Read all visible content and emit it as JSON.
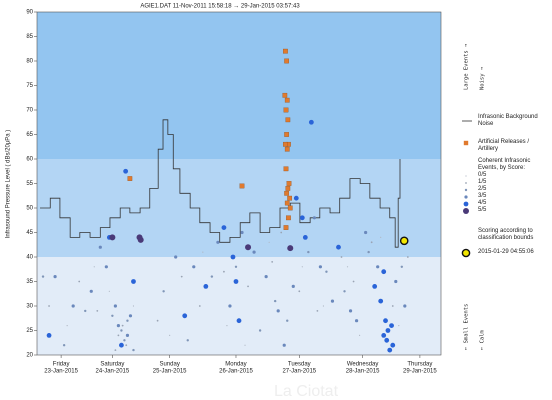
{
  "chart_data": {
    "type": "scatter",
    "title": "AGIE1.DAT  11-Nov-2011 15:58:18  →  29-Jan-2015 03:57:43",
    "y_label": "Infrasound Pressure Level  ( dBs/20μPa )",
    "watermark": "La Ciotat",
    "ylim": [
      20,
      90
    ],
    "yticks": [
      20,
      25,
      30,
      35,
      40,
      45,
      50,
      55,
      60,
      65,
      70,
      75,
      80,
      85,
      90
    ],
    "xlim": [
      0,
      6.7
    ],
    "xticks": [
      {
        "value": 0.4,
        "label": "Friday",
        "date": "23-Jan-2015"
      },
      {
        "value": 1.25,
        "label": "Saturday",
        "date": "24-Jan-2015"
      },
      {
        "value": 2.2,
        "label": "Sunday",
        "date": "25-Jan-2015"
      },
      {
        "value": 3.3,
        "label": "Monday",
        "date": "26-Jan-2015"
      },
      {
        "value": 4.35,
        "label": "Tuesday",
        "date": "27-Jan-2015"
      },
      {
        "value": 5.4,
        "label": "Wednesday",
        "date": "28-Jan-2015"
      },
      {
        "value": 6.35,
        "label": "Thursday",
        "date": "29-Jan-2015"
      }
    ],
    "bands": [
      {
        "from": 20,
        "to": 40,
        "color": "#e2ecf8"
      },
      {
        "from": 40,
        "to": 60,
        "color": "#b3d5f4"
      },
      {
        "from": 60,
        "to": 90,
        "color": "#93c5f0"
      }
    ],
    "side_labels": {
      "top": [
        "Large Events →",
        "Noisy →"
      ],
      "bottom": [
        "← Small Events",
        "← Calm"
      ]
    },
    "legend_headers": [
      "Coherent Infrasonic Events, by Score:",
      "Scoring according to classification bounds"
    ],
    "series": [
      {
        "name": "Infrasonic Background Noise",
        "kind": "step",
        "color": "#333333",
        "x": [
          0.05,
          0.22,
          0.38,
          0.55,
          0.71,
          0.88,
          1.05,
          1.21,
          1.38,
          1.54,
          1.71,
          1.87,
          2.01,
          2.09,
          2.17,
          2.26,
          2.37,
          2.54,
          2.7,
          2.87,
          3.03,
          3.2,
          3.37,
          3.53,
          3.7,
          3.86,
          4.03,
          4.2,
          4.36,
          4.53,
          4.69,
          4.86,
          5.02,
          5.19,
          5.36,
          5.52,
          5.69,
          5.85,
          5.94,
          5.99,
          6.02
        ],
        "values": [
          50,
          52,
          48,
          44,
          45,
          44,
          46,
          48,
          50,
          49,
          50,
          54,
          62,
          68,
          65,
          58,
          53,
          50,
          47,
          45,
          43,
          44,
          47,
          49,
          45,
          46,
          50,
          51,
          47,
          48,
          50,
          49,
          52,
          56,
          55,
          52,
          50,
          48,
          42,
          52,
          60
        ]
      },
      {
        "name": "Artificial Releases / Artillery",
        "kind": "square",
        "color": "#e07a2e",
        "size": 2.2,
        "x": [
          4.12,
          4.14,
          4.11,
          4.15,
          4.13,
          4.16,
          4.14,
          4.17,
          4.12,
          4.15,
          4.13,
          4.18,
          4.16,
          4.14,
          4.19,
          4.15,
          4.2,
          4.17,
          4.13,
          1.54,
          3.4
        ],
        "values": [
          82,
          80,
          73,
          72,
          70,
          68,
          65,
          63,
          63,
          62,
          58,
          55,
          54,
          53,
          52,
          51,
          50,
          48,
          46,
          56,
          54.5
        ]
      },
      {
        "name": "0/5",
        "kind": "dot",
        "color": "#b0b8c4",
        "size": 0.6,
        "x": [
          0.5,
          0.95,
          1.2,
          1.6,
          2.2,
          2.75,
          3.15,
          3.45,
          3.85,
          4.4,
          4.75,
          5.15,
          5.35,
          5.7,
          6.0
        ],
        "values": [
          26,
          38,
          33,
          30,
          24,
          41,
          26,
          22,
          43,
          38,
          30,
          38,
          24,
          44,
          26
        ]
      },
      {
        "name": "1/5",
        "kind": "dot",
        "color": "#9aa4b4",
        "size": 0.9,
        "x": [
          0.2,
          0.7,
          1.0,
          1.3,
          1.35,
          1.42,
          1.48,
          2.0,
          2.4,
          2.7,
          3.1,
          3.5,
          3.9,
          4.05,
          4.35,
          4.65,
          5.05,
          5.25,
          5.55,
          5.9,
          6.15
        ],
        "values": [
          30,
          35,
          29,
          21,
          24,
          26,
          22,
          27,
          36,
          30,
          37,
          34,
          39,
          45,
          33,
          29,
          40,
          35,
          43,
          30,
          40
        ]
      },
      {
        "name": "2/5",
        "kind": "dot",
        "color": "#8096b8",
        "size": 1.2,
        "x": [
          0.1,
          0.45,
          0.8,
          1.25,
          1.4,
          1.45,
          1.5,
          1.6,
          2.1,
          2.5,
          2.9,
          3.3,
          3.7,
          3.95,
          4.15,
          4.5,
          4.8,
          5.1,
          5.5,
          6.05
        ],
        "values": [
          36,
          22,
          29,
          28,
          25,
          23,
          27,
          21,
          33,
          23,
          36,
          38,
          25,
          31,
          27,
          41,
          37,
          33,
          41,
          38
        ]
      },
      {
        "name": "3/5",
        "kind": "dot",
        "color": "#6a88bc",
        "size": 1.6,
        "x": [
          0.3,
          0.6,
          0.9,
          1.05,
          1.15,
          1.3,
          1.35,
          1.5,
          1.55,
          2.3,
          2.6,
          3.0,
          3.2,
          3.4,
          3.6,
          3.8,
          4.0,
          4.1,
          4.25,
          4.6,
          4.7,
          4.9,
          5.2,
          5.3,
          5.45,
          5.65,
          5.95,
          6.1
        ],
        "values": [
          36,
          30,
          33,
          42,
          38,
          30,
          26,
          24,
          28,
          40,
          38,
          43,
          30,
          45,
          41,
          36,
          29,
          22,
          34,
          48,
          38,
          31,
          29,
          27,
          45,
          38,
          35,
          30
        ]
      },
      {
        "name": "4/5",
        "kind": "dot",
        "color": "#2a64d8",
        "size": 2.4,
        "x": [
          1.47,
          1.2,
          3.1,
          3.3,
          3.25,
          2.45,
          4.55,
          4.3,
          4.4,
          4.45,
          5.75,
          5.8,
          5.85,
          5.9,
          5.82,
          5.88,
          5.78,
          5.7,
          5.6,
          5.75,
          0.2,
          1.4,
          1.6,
          3.35,
          2.8,
          5.0
        ],
        "values": [
          57.5,
          44,
          46,
          35,
          40,
          28,
          67.5,
          52,
          48,
          44,
          24,
          23,
          21,
          22,
          25,
          26,
          27,
          31,
          34,
          37,
          24,
          22,
          35,
          27,
          34,
          42
        ]
      },
      {
        "name": "5/5",
        "kind": "dot",
        "color": "#4a3a78",
        "size": 3,
        "x": [
          1.7,
          1.72,
          3.5,
          4.2,
          1.25
        ],
        "values": [
          44,
          43.5,
          42,
          41.8,
          44
        ]
      },
      {
        "name": "2015-01-29 04:55:06",
        "kind": "ring",
        "color": "#f2e600",
        "size": 3.6,
        "x": [
          6.09
        ],
        "values": [
          43.3
        ]
      }
    ]
  }
}
